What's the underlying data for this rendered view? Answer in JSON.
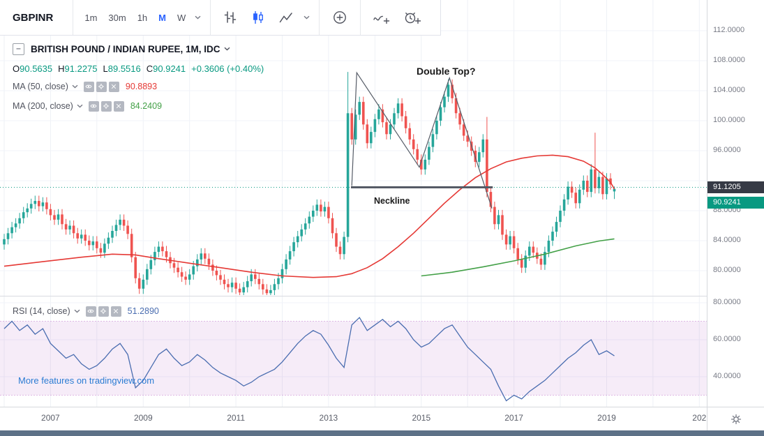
{
  "header": {
    "symbol": "GBPINR",
    "intervals": [
      "1m",
      "30m",
      "1h",
      "M",
      "W"
    ],
    "active_interval": "M",
    "icons": [
      "bars-chart-icon",
      "candles-chart-icon",
      "area-chart-icon",
      "interval-dropdown-icon",
      "chart-style-dropdown-icon",
      "compare-add-icon",
      "draw-line-icon",
      "alert-add-icon"
    ]
  },
  "legend": {
    "symbol_title": "BRITISH POUND / INDIAN RUPEE, 1M, IDC",
    "ohlc": {
      "o_label": "O",
      "o": "90.5635",
      "h_label": "H",
      "h": "91.2275",
      "l_label": "L",
      "l": "89.5516",
      "c_label": "C",
      "c": "90.9241",
      "change": "+0.3606 (+0.40%)"
    },
    "ma50": {
      "label": "MA (50, close)",
      "value": "90.8893"
    },
    "ma200": {
      "label": "MA (200, close)",
      "value": "84.2409"
    },
    "rsi": {
      "label": "RSI (14, close)",
      "value": "51.2890"
    }
  },
  "annotations": {
    "double_top": "Double Top?",
    "neckline": "Neckline"
  },
  "watermark": {
    "text": "More features on tradingview.com"
  },
  "price_labels": {
    "level": "91.1205",
    "last": "90.9241"
  },
  "axes": {
    "price": [
      {
        "label": "112.0000",
        "value": 112
      },
      {
        "label": "108.0000",
        "value": 108
      },
      {
        "label": "104.0000",
        "value": 104
      },
      {
        "label": "100.0000",
        "value": 100
      },
      {
        "label": "96.0000",
        "value": 96
      },
      {
        "label": "88.0000",
        "value": 88
      },
      {
        "label": "84.0000",
        "value": 84
      },
      {
        "label": "80.0000",
        "value": 80
      }
    ],
    "rsi": [
      {
        "label": "80.0000",
        "value": 80
      },
      {
        "label": "60.0000",
        "value": 60
      },
      {
        "label": "40.0000",
        "value": 40
      }
    ],
    "time": [
      {
        "label": "2007",
        "index": 12
      },
      {
        "label": "2009",
        "index": 36
      },
      {
        "label": "2011",
        "index": 60
      },
      {
        "label": "2013",
        "index": 84
      },
      {
        "label": "2015",
        "index": 108
      },
      {
        "label": "2017",
        "index": 132
      },
      {
        "label": "2019",
        "index": 156
      },
      {
        "label": "202",
        "index": 180
      }
    ]
  },
  "colors": {
    "up_candle": "#26a69a",
    "down_candle": "#ef5350",
    "ma50_line": "#e53935",
    "ma200_line": "#43a047",
    "rsi_line": "#4a6db0",
    "rsi_band_fill": "#9c27b0",
    "price_line": "#089981",
    "accent": "#2962ff",
    "level_label_bg": "#363a45",
    "last_label_bg": "#089981",
    "pattern_line": "#555b66",
    "neckline_line": "#555b66"
  },
  "chart_data": {
    "type": "candlestick",
    "title": "BRITISH POUND / INDIAN RUPEE, 1M, IDC",
    "x_axis": "monthly candles, 2006 - 2019",
    "y_range": [
      76,
      113
    ],
    "first_open": 83.5,
    "default_wick": 0.7,
    "closes": [
      84.2,
      85.0,
      85.8,
      86.3,
      87.0,
      87.8,
      88.3,
      88.9,
      89.3,
      88.6,
      89.1,
      88.2,
      87.4,
      86.8,
      87.5,
      86.2,
      85.5,
      86.0,
      85.0,
      84.3,
      84.8,
      84.0,
      83.4,
      83.9,
      83.0,
      82.4,
      83.6,
      84.4,
      85.3,
      86.1,
      86.8,
      86.0,
      84.9,
      81.8,
      79.0,
      77.6,
      78.8,
      80.2,
      81.4,
      82.5,
      83.2,
      82.6,
      81.8,
      81.0,
      80.4,
      79.8,
      79.2,
      78.8,
      79.5,
      80.6,
      81.5,
      82.3,
      81.6,
      80.8,
      80.0,
      79.4,
      78.8,
      78.2,
      77.8,
      78.4,
      77.6,
      77.1,
      77.8,
      78.6,
      79.5,
      78.9,
      78.2,
      77.5,
      77.0,
      77.4,
      78.2,
      79.0,
      80.2,
      81.5,
      82.6,
      83.8,
      84.6,
      85.5,
      86.3,
      87.2,
      88.0,
      88.8,
      87.9,
      88.5,
      87.0,
      85.0,
      83.2,
      82.2,
      84.5,
      101.0,
      97.5,
      100.8,
      102.5,
      99.5,
      97.0,
      98.5,
      100.2,
      101.5,
      99.8,
      98.2,
      99.5,
      101.0,
      102.3,
      100.6,
      99.0,
      97.5,
      96.2,
      94.8,
      93.5,
      94.8,
      96.5,
      98.2,
      100.0,
      101.8,
      103.2,
      104.8,
      103.0,
      101.0,
      99.5,
      98.0,
      97.2,
      96.0,
      94.5,
      95.8,
      97.5,
      90.5,
      88.5,
      86.2,
      87.4,
      84.8,
      83.5,
      84.6,
      83.0,
      81.5,
      80.4,
      82.0,
      83.2,
      82.4,
      81.6,
      80.8,
      82.5,
      84.0,
      85.2,
      86.5,
      88.0,
      89.5,
      91.2,
      90.4,
      89.0,
      90.8,
      92.0,
      90.5,
      93.5,
      91.0,
      92.5,
      90.2,
      92.3,
      91.5,
      90.9241
    ],
    "special_candles": {
      "89": [
        84.5,
        106.5,
        83.8,
        101.0
      ],
      "125": [
        97.5,
        100.5,
        89.8,
        90.5
      ],
      "153": [
        93.5,
        98.4,
        90.3,
        91.0
      ],
      "158": [
        90.5635,
        91.2275,
        89.5516,
        90.9241
      ]
    },
    "ma50_points": [
      [
        0,
        80.6
      ],
      [
        10,
        81.2
      ],
      [
        20,
        81.8
      ],
      [
        28,
        82.2
      ],
      [
        34,
        82.1
      ],
      [
        40,
        81.6
      ],
      [
        48,
        81.0
      ],
      [
        56,
        80.4
      ],
      [
        64,
        79.8
      ],
      [
        72,
        79.3
      ],
      [
        80,
        79.1
      ],
      [
        86,
        79.2
      ],
      [
        90,
        79.6
      ],
      [
        94,
        80.4
      ],
      [
        98,
        81.6
      ],
      [
        102,
        83.2
      ],
      [
        106,
        85.0
      ],
      [
        110,
        87.0
      ],
      [
        114,
        89.0
      ],
      [
        118,
        90.8
      ],
      [
        122,
        92.4
      ],
      [
        126,
        93.6
      ],
      [
        130,
        94.5
      ],
      [
        134,
        95.0
      ],
      [
        138,
        95.3
      ],
      [
        142,
        95.4
      ],
      [
        146,
        95.2
      ],
      [
        150,
        94.6
      ],
      [
        153,
        93.7
      ],
      [
        155,
        92.8
      ],
      [
        157,
        91.8
      ],
      [
        158,
        90.89
      ]
    ],
    "ma200_points": [
      [
        108,
        79.3
      ],
      [
        116,
        79.8
      ],
      [
        124,
        80.5
      ],
      [
        132,
        81.3
      ],
      [
        140,
        82.2
      ],
      [
        148,
        83.3
      ],
      [
        154,
        83.95
      ],
      [
        158,
        84.24
      ]
    ],
    "rsi": {
      "step": 2,
      "range": [
        20,
        80
      ],
      "band": [
        30,
        70
      ],
      "values": [
        66,
        70,
        65,
        68,
        63,
        66,
        58,
        54,
        50,
        52,
        47,
        44,
        46,
        50,
        55,
        58,
        52,
        34,
        38,
        45,
        52,
        55,
        50,
        46,
        48,
        52,
        49,
        45,
        42,
        40,
        38,
        35,
        37,
        40,
        42,
        44,
        48,
        53,
        58,
        62,
        65,
        63,
        57,
        50,
        45,
        68,
        72,
        65,
        68,
        71,
        67,
        70,
        66,
        60,
        56,
        58,
        62,
        66,
        68,
        62,
        56,
        52,
        48,
        44,
        35,
        27,
        30,
        28,
        32,
        35,
        38,
        42,
        46,
        50,
        53,
        57,
        60,
        52,
        54,
        51.3
      ]
    },
    "pattern": {
      "polyline": [
        [
          90.0,
          91.3
        ],
        [
          91.3,
          106.4
        ],
        [
          107.5,
          93.8
        ],
        [
          115.3,
          105.7
        ],
        [
          126.3,
          88.3
        ]
      ],
      "neckline": {
        "i1": 89.8,
        "i2": 126.5,
        "price": 91.12
      }
    },
    "price_line_level": 91.1205
  }
}
